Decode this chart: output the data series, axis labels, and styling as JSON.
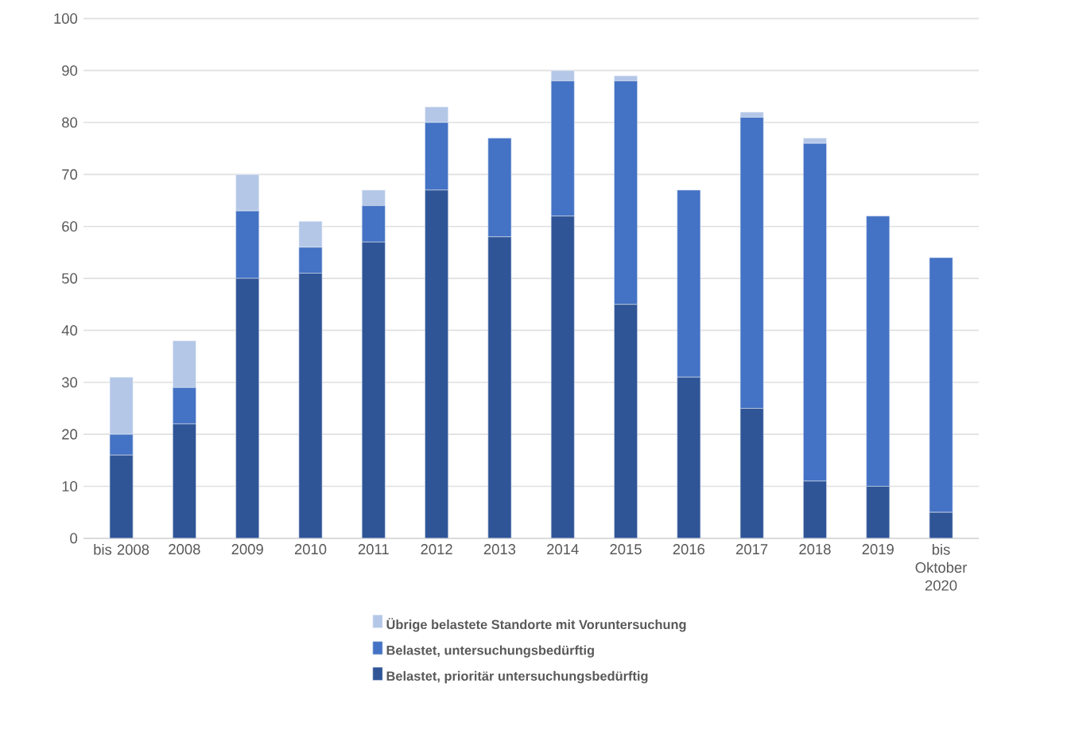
{
  "chart_data": {
    "type": "bar",
    "stacked": true,
    "categories": [
      "bis 2008",
      "2008",
      "2009",
      "2010",
      "2011",
      "2012",
      "2013",
      "2014",
      "2015",
      "2016",
      "2017",
      "2018",
      "2019",
      "bis Oktober 2020"
    ],
    "series": [
      {
        "name": "Belastet, prioritär untersuchungsbedürftig",
        "color": "#2f5597",
        "values": [
          16,
          22,
          50,
          51,
          57,
          67,
          58,
          62,
          45,
          31,
          25,
          11,
          10,
          5
        ]
      },
      {
        "name": "Belastet, untersuchungsbedürftig",
        "color": "#4472c4",
        "values": [
          4,
          7,
          13,
          5,
          7,
          13,
          19,
          26,
          43,
          36,
          56,
          65,
          52,
          49
        ]
      },
      {
        "name": "Übrige belastete Standorte mit Voruntersuchung",
        "color": "#b4c7e7",
        "values": [
          11,
          9,
          7,
          5,
          3,
          3,
          0,
          2,
          1,
          0,
          1,
          1,
          0,
          0
        ]
      }
    ],
    "ylim": [
      0,
      100
    ],
    "yticks": [
      0,
      10,
      20,
      30,
      40,
      50,
      60,
      70,
      80,
      90,
      100
    ],
    "grid": "y",
    "legend": "bottom"
  }
}
